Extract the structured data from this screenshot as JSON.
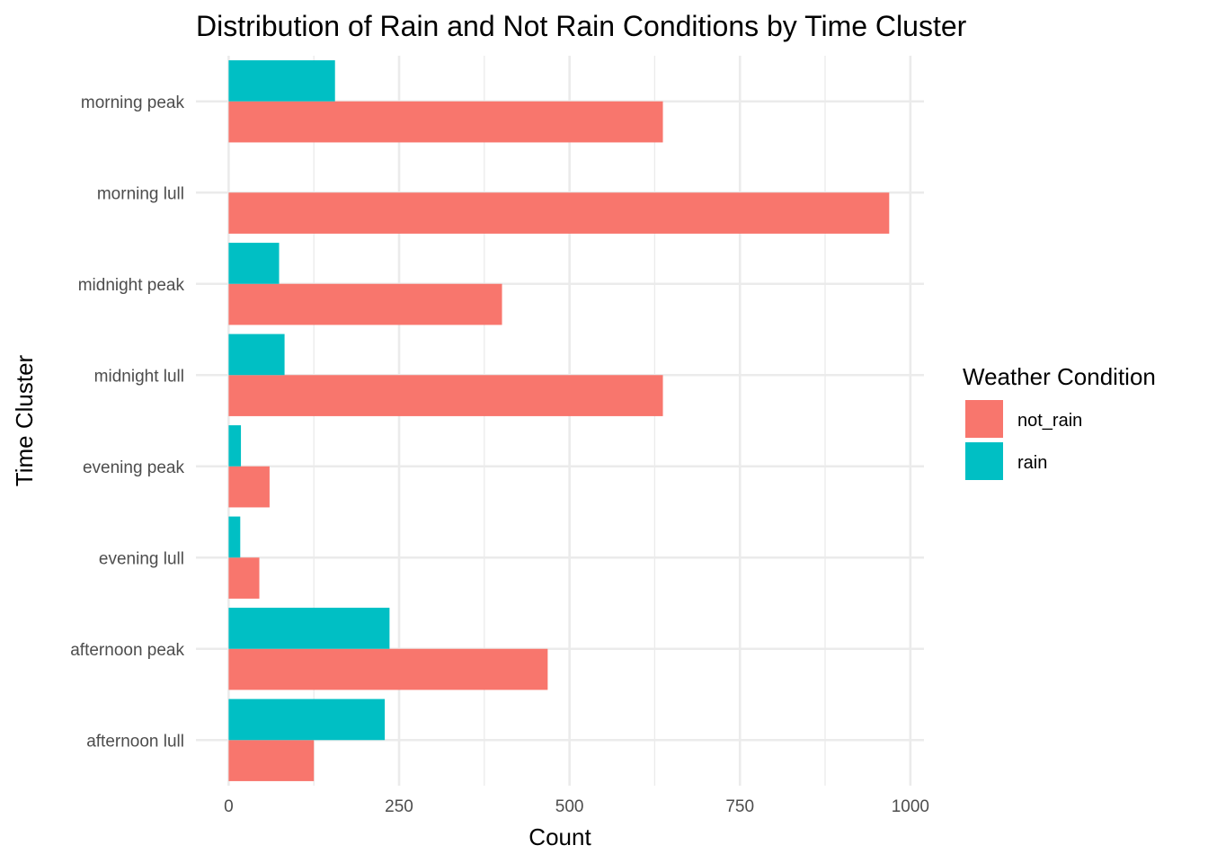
{
  "chart_data": {
    "type": "bar",
    "orientation": "horizontal",
    "position": "dodge",
    "title": "Distribution of Rain and Not Rain Conditions by Time Cluster",
    "xlabel": "Count",
    "ylabel": "Time Cluster",
    "categories": [
      "afternoon lull",
      "afternoon peak",
      "evening lull",
      "evening peak",
      "midnight lull",
      "midnight peak",
      "morning lull",
      "morning peak"
    ],
    "series": [
      {
        "name": "not_rain",
        "color": "#f8766d",
        "values": [
          125,
          468,
          45,
          60,
          637,
          401,
          969,
          637
        ]
      },
      {
        "name": "rain",
        "color": "#00bfc4",
        "values": [
          229,
          236,
          17,
          18,
          82,
          74,
          0,
          156
        ]
      }
    ],
    "xlim": [
      -48,
      1020
    ],
    "xticks": [
      0,
      250,
      500,
      750,
      1000
    ],
    "xtick_labels": [
      "0",
      "250",
      "500",
      "750",
      "1000"
    ],
    "grid": true,
    "legend": {
      "title": "Weather Condition",
      "position": "right",
      "entries": [
        "not_rain",
        "rain"
      ]
    }
  }
}
